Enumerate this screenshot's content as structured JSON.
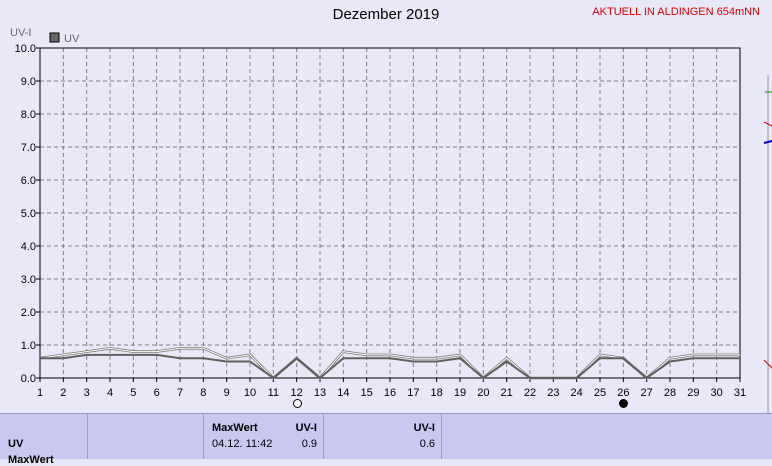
{
  "header": {
    "title": "Dezember 2019",
    "station": "AKTUELL IN ALDINGEN 654mNN"
  },
  "chart_data": {
    "type": "line",
    "title": "Dezember 2019",
    "ylabel": "UV-I",
    "ylim": [
      0,
      10
    ],
    "yticks": [
      "0.0",
      "1.0",
      "2.0",
      "3.0",
      "4.0",
      "5.0",
      "6.0",
      "7.0",
      "8.0",
      "9.0",
      "10.0"
    ],
    "xlim": [
      1,
      31
    ],
    "xticks": [
      "1",
      "2",
      "3",
      "4",
      "5",
      "6",
      "7",
      "8",
      "9",
      "10",
      "11",
      "12",
      "13",
      "14",
      "15",
      "16",
      "17",
      "18",
      "19",
      "20",
      "21",
      "22",
      "23",
      "24",
      "25",
      "26",
      "27",
      "28",
      "29",
      "30",
      "31"
    ],
    "grid": true,
    "legend": "top-left",
    "series": [
      {
        "name": "UV",
        "x": [
          1,
          2,
          3,
          4,
          5,
          6,
          7,
          8,
          9,
          10,
          11,
          12,
          13,
          14,
          15,
          16,
          17,
          18,
          19,
          20,
          21,
          22,
          23,
          24,
          25,
          26,
          27,
          28,
          29,
          30,
          31
        ],
        "values": [
          0.6,
          0.6,
          0.7,
          0.7,
          0.7,
          0.7,
          0.6,
          0.6,
          0.5,
          0.5,
          0.0,
          0.6,
          0.0,
          0.6,
          0.6,
          0.6,
          0.5,
          0.5,
          0.6,
          0.0,
          0.5,
          0.0,
          0.0,
          0.0,
          0.6,
          0.6,
          0.0,
          0.5,
          0.6,
          0.6,
          0.6
        ],
        "color": "#606060"
      },
      {
        "name": "",
        "x": [
          1,
          2,
          3,
          4,
          5,
          6,
          7,
          8,
          9,
          10,
          11,
          12,
          13,
          14,
          15,
          16,
          17,
          18,
          19,
          20,
          21,
          22,
          23,
          24,
          25,
          26,
          27,
          28,
          29,
          30,
          31
        ],
        "values": [
          0.6,
          0.7,
          0.8,
          0.9,
          0.8,
          0.8,
          0.9,
          0.9,
          0.6,
          0.7,
          0.0,
          0.6,
          0.0,
          0.8,
          0.7,
          0.7,
          0.6,
          0.6,
          0.7,
          0.0,
          0.6,
          0.0,
          0.0,
          0.0,
          0.7,
          0.6,
          0.0,
          0.6,
          0.7,
          0.7,
          0.7
        ],
        "color": "#ffffff"
      }
    ],
    "annotations": [
      {
        "type": "moon",
        "phase": "full",
        "x": 12
      },
      {
        "type": "moon",
        "phase": "new",
        "x": 26
      }
    ]
  },
  "table": {
    "row_label": "UV",
    "row2_label": "MaxWert",
    "max_header": "MaxWert",
    "unit_header": "UV-I",
    "max_time": "04.12. 11:42",
    "max_value": "0.9",
    "col3_header": "UV-I",
    "col3_value": "0.6"
  },
  "colors": {
    "background": "#e8e8f8",
    "grid": "#808080",
    "station": "#e00000",
    "table": "#c8c8f0"
  }
}
